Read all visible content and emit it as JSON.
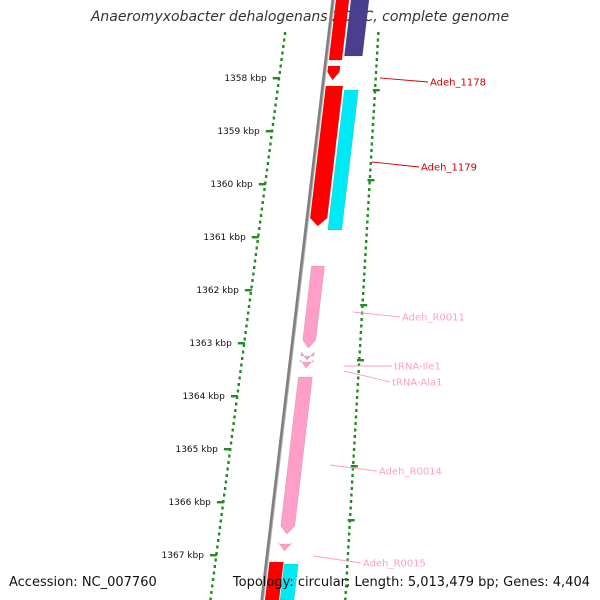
{
  "title": "Anaeromyxobacter dehalogenans 2CP-C, complete genome",
  "accession": "Accession: NC_007760",
  "topology": "Topology: circular; Length: 5,013,479 bp; Genes: 4,404",
  "colors": {
    "cds_forward": "#ff0000",
    "cds_reverse_a": "#4a3f8c",
    "cds_reverse_b": "#00eaf5",
    "rna": "#ff9ec8",
    "backbone": "#808080",
    "ticks": "#228b22"
  },
  "ruler": [
    {
      "label": "1358 kbp"
    },
    {
      "label": "1359 kbp"
    },
    {
      "label": "1360 kbp"
    },
    {
      "label": "1361 kbp"
    },
    {
      "label": "1362 kbp"
    },
    {
      "label": "1363 kbp"
    },
    {
      "label": "1364 kbp"
    },
    {
      "label": "1365 kbp"
    },
    {
      "label": "1366 kbp"
    },
    {
      "label": "1367 kbp"
    }
  ],
  "features": [
    {
      "label": "Adeh_1178",
      "color": "#cc0000"
    },
    {
      "label": "Adeh_1179",
      "color": "#cc0000"
    },
    {
      "label": "Adeh_R0011",
      "color": "#ff9ec8"
    },
    {
      "label": "tRNA-Ile1",
      "color": "#ff9ec8"
    },
    {
      "label": "tRNA-Ala1",
      "color": "#ff9ec8"
    },
    {
      "label": "Adeh_R0014",
      "color": "#ff9ec8"
    },
    {
      "label": "Adeh_R0015",
      "color": "#ff9ec8"
    }
  ]
}
